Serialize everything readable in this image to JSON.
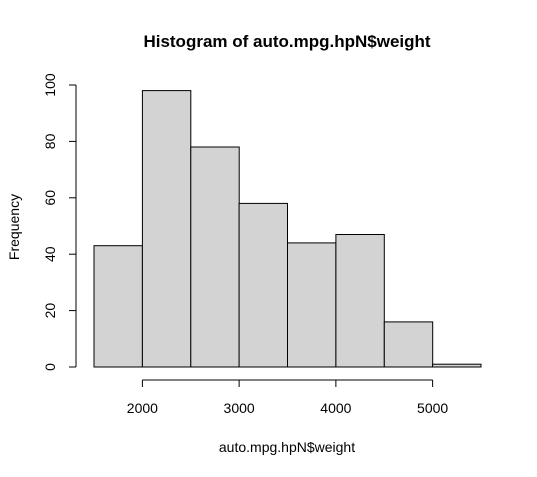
{
  "chart_data": {
    "type": "bar",
    "subtype": "histogram",
    "title": "Histogram of auto.mpg.hpN$weight",
    "xlabel": "auto.mpg.hpN$weight",
    "ylabel": "Frequency",
    "bins": [
      {
        "start": 1500,
        "end": 2000,
        "count": 43
      },
      {
        "start": 2000,
        "end": 2500,
        "count": 98
      },
      {
        "start": 2500,
        "end": 3000,
        "count": 78
      },
      {
        "start": 3000,
        "end": 3500,
        "count": 58
      },
      {
        "start": 3500,
        "end": 4000,
        "count": 44
      },
      {
        "start": 4000,
        "end": 4500,
        "count": 47
      },
      {
        "start": 4500,
        "end": 5000,
        "count": 16
      },
      {
        "start": 5000,
        "end": 5500,
        "count": 1
      }
    ],
    "xlim": [
      1500,
      5500
    ],
    "ylim": [
      0,
      100
    ],
    "x_ticks": [
      2000,
      3000,
      4000,
      5000
    ],
    "y_ticks": [
      0,
      20,
      40,
      60,
      80,
      100
    ],
    "grid": false,
    "legend": "none",
    "bar_fill": "#d3d3d3",
    "bar_stroke": "#000000"
  }
}
